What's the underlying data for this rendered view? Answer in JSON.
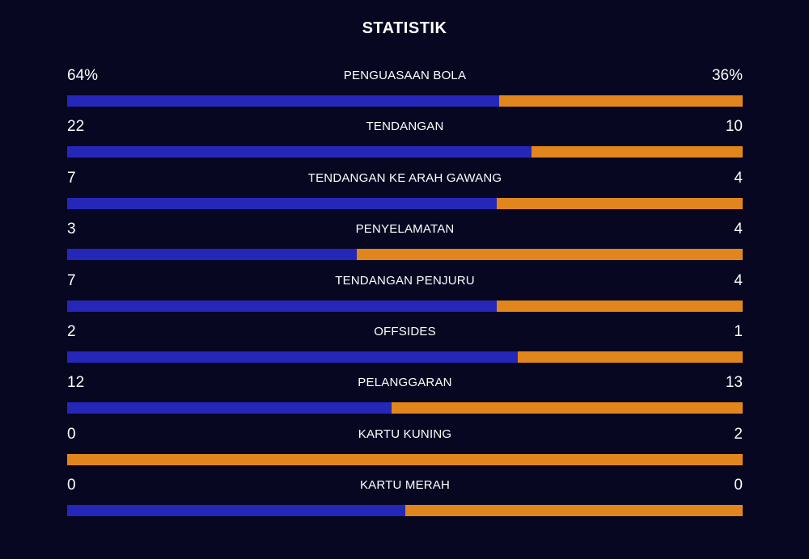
{
  "title": "STATISTIK",
  "colors": {
    "background": "#070722",
    "home": "#2427b8",
    "away": "#e0861c",
    "text": "#ffffff"
  },
  "chart_data": {
    "type": "bar",
    "title": "STATISTIK",
    "stats": [
      {
        "label": "PENGUASAAN BOLA",
        "home_text": "64%",
        "away_text": "36%",
        "home": 64,
        "away": 36
      },
      {
        "label": "TENDANGAN",
        "home_text": "22",
        "away_text": "10",
        "home": 22,
        "away": 10
      },
      {
        "label": "TENDANGAN KE ARAH GAWANG",
        "home_text": "7",
        "away_text": "4",
        "home": 7,
        "away": 4
      },
      {
        "label": "PENYELAMATAN",
        "home_text": "3",
        "away_text": "4",
        "home": 3,
        "away": 4
      },
      {
        "label": "TENDANGAN PENJURU",
        "home_text": "7",
        "away_text": "4",
        "home": 7,
        "away": 4
      },
      {
        "label": "OFFSIDES",
        "home_text": "2",
        "away_text": "1",
        "home": 2,
        "away": 1
      },
      {
        "label": "PELANGGARAN",
        "home_text": "12",
        "away_text": "13",
        "home": 12,
        "away": 13
      },
      {
        "label": "KARTU KUNING",
        "home_text": "0",
        "away_text": "2",
        "home": 0,
        "away": 2
      },
      {
        "label": "KARTU MERAH",
        "home_text": "0",
        "away_text": "0",
        "home": 0,
        "away": 0
      }
    ]
  }
}
